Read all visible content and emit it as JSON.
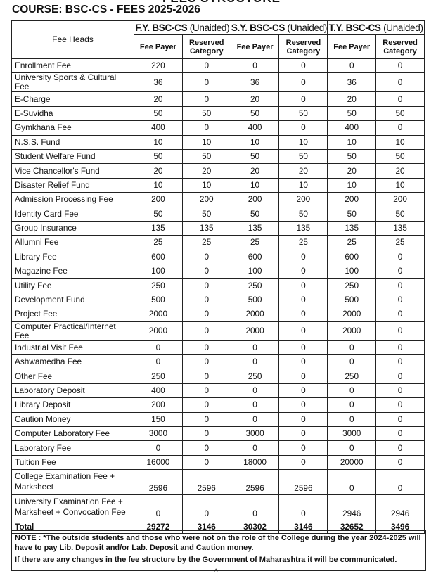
{
  "top_title": "FEES STRUCTURE",
  "course_title": "COURSE: BSC-CS - FEES 2025-2026",
  "table": {
    "fee_heads_label": "Fee Heads",
    "groups": [
      {
        "name": "F.Y. BSC-CS",
        "suffix": "(Unaided)"
      },
      {
        "name": "S.Y. BSC-CS",
        "suffix": "(Unaided)"
      },
      {
        "name": "T.Y. BSC-CS",
        "suffix": "(Unaided)"
      }
    ],
    "sub_headers": [
      "Fee Payer",
      "Reserved Category"
    ],
    "rows": [
      {
        "head": "Enrollment Fee",
        "values": [
          "220",
          "0",
          "0",
          "0",
          "0",
          "0"
        ]
      },
      {
        "head": "University Sports & Cultural Fee",
        "values": [
          "36",
          "0",
          "36",
          "0",
          "36",
          "0"
        ]
      },
      {
        "head": "E-Charge",
        "values": [
          "20",
          "0",
          "20",
          "0",
          "20",
          "0"
        ]
      },
      {
        "head": "E-Suvidha",
        "values": [
          "50",
          "50",
          "50",
          "50",
          "50",
          "50"
        ]
      },
      {
        "head": "Gymkhana Fee",
        "values": [
          "400",
          "0",
          "400",
          "0",
          "400",
          "0"
        ]
      },
      {
        "head": "N.S.S. Fund",
        "values": [
          "10",
          "10",
          "10",
          "10",
          "10",
          "10"
        ]
      },
      {
        "head": "Student Welfare Fund",
        "values": [
          "50",
          "50",
          "50",
          "50",
          "50",
          "50"
        ]
      },
      {
        "head": "Vice Chancellor's Fund",
        "values": [
          "20",
          "20",
          "20",
          "20",
          "20",
          "20"
        ]
      },
      {
        "head": "Disaster Relief Fund",
        "values": [
          "10",
          "10",
          "10",
          "10",
          "10",
          "10"
        ]
      },
      {
        "head": "Admission Processing Fee",
        "values": [
          "200",
          "200",
          "200",
          "200",
          "200",
          "200"
        ]
      },
      {
        "head": "Identity Card Fee",
        "values": [
          "50",
          "50",
          "50",
          "50",
          "50",
          "50"
        ]
      },
      {
        "head": "Group Insurance",
        "values": [
          "135",
          "135",
          "135",
          "135",
          "135",
          "135"
        ]
      },
      {
        "head": "Allumni Fee",
        "values": [
          "25",
          "25",
          "25",
          "25",
          "25",
          "25"
        ]
      },
      {
        "head": "Library Fee",
        "values": [
          "600",
          "0",
          "600",
          "0",
          "600",
          "0"
        ]
      },
      {
        "head": "Magazine Fee",
        "values": [
          "100",
          "0",
          "100",
          "0",
          "100",
          "0"
        ]
      },
      {
        "head": "Utility Fee",
        "values": [
          "250",
          "0",
          "250",
          "0",
          "250",
          "0"
        ]
      },
      {
        "head": "Development Fund",
        "values": [
          "500",
          "0",
          "500",
          "0",
          "500",
          "0"
        ]
      },
      {
        "head": "Project Fee",
        "values": [
          "2000",
          "0",
          "2000",
          "0",
          "2000",
          "0"
        ]
      },
      {
        "head": "Computer Practical/Internet Fee",
        "values": [
          "2000",
          "0",
          "2000",
          "0",
          "2000",
          "0"
        ]
      },
      {
        "head": "Industrial Visit Fee",
        "values": [
          "0",
          "0",
          "0",
          "0",
          "0",
          "0"
        ]
      },
      {
        "head": "Ashwamedha Fee",
        "values": [
          "0",
          "0",
          "0",
          "0",
          "0",
          "0"
        ]
      },
      {
        "head": "Other Fee",
        "values": [
          "250",
          "0",
          "250",
          "0",
          "250",
          "0"
        ]
      },
      {
        "head": "Laboratory Deposit",
        "values": [
          "400",
          "0",
          "0",
          "0",
          "0",
          "0"
        ]
      },
      {
        "head": "Library Deposit",
        "values": [
          "200",
          "0",
          "0",
          "0",
          "0",
          "0"
        ]
      },
      {
        "head": "Caution Money",
        "values": [
          "150",
          "0",
          "0",
          "0",
          "0",
          "0"
        ]
      },
      {
        "head": "Computer Laboratory Fee",
        "values": [
          "3000",
          "0",
          "3000",
          "0",
          "3000",
          "0"
        ]
      },
      {
        "head": "Laboratory Fee",
        "values": [
          "0",
          "0",
          "0",
          "0",
          "0",
          "0"
        ]
      },
      {
        "head": "Tuition Fee",
        "values": [
          "16000",
          "0",
          "18000",
          "0",
          "20000",
          "0"
        ]
      }
    ],
    "tall_rows": [
      {
        "head_line1": "College Examination Fee +",
        "head_line2": "Marksheet",
        "values": [
          "2596",
          "2596",
          "2596",
          "2596",
          "0",
          "0"
        ]
      },
      {
        "head_line1": "University Examination Fee +",
        "head_line2": "Marksheet + Convocation Fee",
        "values": [
          "0",
          "0",
          "0",
          "0",
          "2946",
          "2946"
        ]
      }
    ],
    "total": {
      "head": "Total",
      "values": [
        "29272",
        "3146",
        "30302",
        "3146",
        "32652",
        "3496"
      ]
    }
  },
  "note": {
    "line1": "NOTE : *The outside students and those who were not on the role of the College during the year 2024-2025 will have to pay Lib. Deposit and/or Lab. Deposit and Caution money.",
    "line2": "If there are any changes in the fee structure by the Government of Maharashtra it will be communicated."
  }
}
